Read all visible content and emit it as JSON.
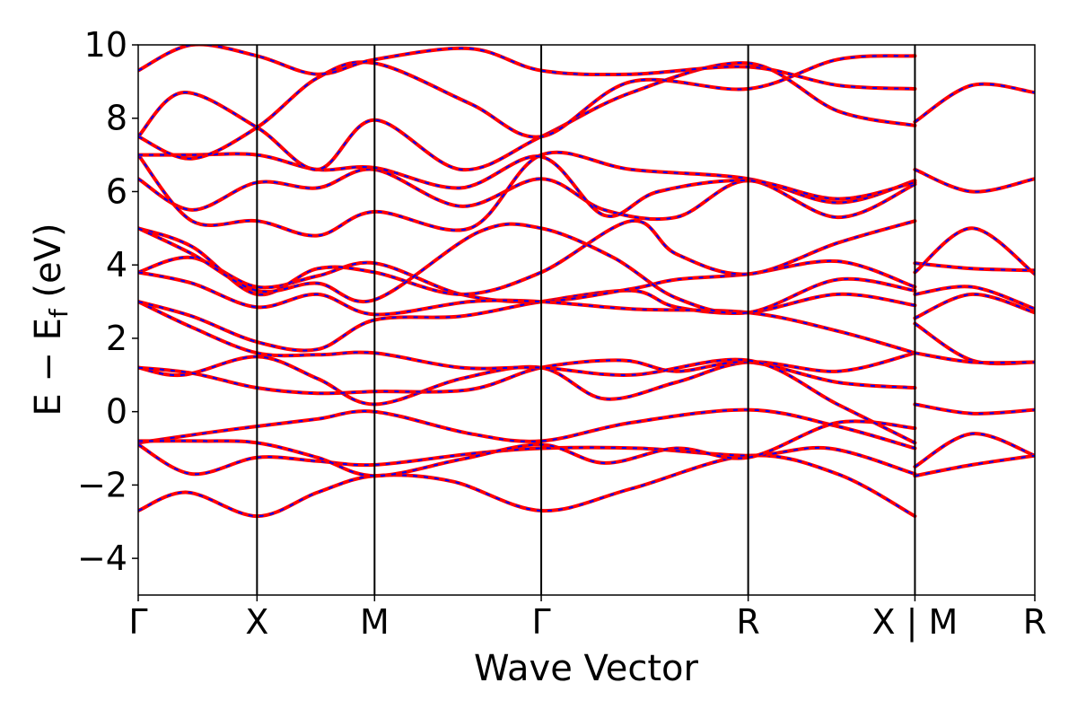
{
  "chart_data": {
    "type": "line",
    "xlabel": "Wave Vector",
    "ylabel": "E − E_f (eV)",
    "ylabel_parts": {
      "main": "E − E",
      "sub": "f",
      "unit": "(eV)"
    },
    "ylim": [
      -5,
      10
    ],
    "yticks": [
      -4,
      -2,
      0,
      2,
      4,
      6,
      8,
      10
    ],
    "ytick_labels": [
      "−4",
      "−2",
      "0",
      "2",
      "4",
      "6",
      "8",
      "10"
    ],
    "xlim": [
      0,
      1
    ],
    "kpoints": [
      {
        "label": "Γ",
        "x": 0.0
      },
      {
        "label": "X",
        "x": 0.1325
      },
      {
        "label": "M",
        "x": 0.2636
      },
      {
        "label": "Γ",
        "x": 0.4495
      },
      {
        "label": "R",
        "x": 0.6803
      },
      {
        "label": "X | M",
        "x": 0.8663
      },
      {
        "label": "R",
        "x": 1.0
      }
    ],
    "grid": false,
    "legend": "none",
    "series_style": [
      {
        "color": "#ff0000",
        "style": "solid"
      },
      {
        "color": "#0000ff",
        "style": "dashed"
      }
    ],
    "bands": [
      [
        [
          0.0,
          -2.7
        ],
        [
          0.0545,
          -2.2
        ],
        [
          0.1325,
          -2.85
        ],
        [
          0.2,
          -2.2
        ],
        [
          0.2636,
          -1.75
        ],
        [
          0.35,
          -1.9
        ],
        [
          0.4495,
          -2.7
        ],
        [
          0.55,
          -2.1
        ],
        [
          0.6803,
          -1.2
        ],
        [
          0.78,
          -1.7
        ],
        [
          0.8663,
          -2.85
        ]
      ],
      [
        [
          0.0,
          -0.9
        ],
        [
          0.06,
          -1.7
        ],
        [
          0.1325,
          -1.25
        ],
        [
          0.2,
          -1.35
        ],
        [
          0.2636,
          -1.45
        ],
        [
          0.37,
          -1.15
        ],
        [
          0.4495,
          -1.0
        ],
        [
          0.56,
          -1.0
        ],
        [
          0.6803,
          -1.2
        ],
        [
          0.77,
          -1.0
        ],
        [
          0.8663,
          -1.7
        ]
      ],
      [
        [
          0.0,
          -0.85
        ],
        [
          0.07,
          -0.6
        ],
        [
          0.1325,
          -0.4
        ],
        [
          0.2,
          -0.2
        ],
        [
          0.2636,
          0.0
        ],
        [
          0.37,
          -0.6
        ],
        [
          0.4495,
          -0.8
        ],
        [
          0.55,
          -0.3
        ],
        [
          0.6803,
          0.05
        ],
        [
          0.78,
          -0.4
        ],
        [
          0.8663,
          -1.0
        ]
      ],
      [
        [
          0.0,
          -0.8
        ],
        [
          0.07,
          -0.8
        ],
        [
          0.1325,
          -0.85
        ],
        [
          0.2,
          -1.25
        ],
        [
          0.2636,
          -1.75
        ],
        [
          0.36,
          -1.3
        ],
        [
          0.4495,
          -0.9
        ],
        [
          0.52,
          -1.4
        ],
        [
          0.6,
          -1.0
        ],
        [
          0.6803,
          -1.25
        ],
        [
          0.78,
          -0.3
        ],
        [
          0.8663,
          -0.45
        ]
      ],
      [
        [
          0.0,
          1.2
        ],
        [
          0.05,
          1.0
        ],
        [
          0.1325,
          1.5
        ],
        [
          0.2,
          0.9
        ],
        [
          0.2636,
          0.2
        ],
        [
          0.36,
          0.9
        ],
        [
          0.4495,
          1.2
        ],
        [
          0.52,
          0.35
        ],
        [
          0.6,
          0.8
        ],
        [
          0.6803,
          1.35
        ],
        [
          0.78,
          1.1
        ],
        [
          0.8663,
          1.6
        ]
      ],
      [
        [
          0.0,
          1.2
        ],
        [
          0.06,
          1.05
        ],
        [
          0.1325,
          0.65
        ],
        [
          0.2,
          0.5
        ],
        [
          0.2636,
          0.55
        ],
        [
          0.37,
          0.6
        ],
        [
          0.4495,
          1.2
        ],
        [
          0.54,
          1.4
        ],
        [
          0.6,
          1.1
        ],
        [
          0.6803,
          1.35
        ],
        [
          0.78,
          0.8
        ],
        [
          0.8663,
          0.65
        ]
      ],
      [
        [
          0.0,
          3.0
        ],
        [
          0.06,
          2.3
        ],
        [
          0.1325,
          1.6
        ],
        [
          0.2,
          1.55
        ],
        [
          0.2636,
          1.6
        ],
        [
          0.36,
          1.2
        ],
        [
          0.4495,
          1.2
        ],
        [
          0.55,
          1.0
        ],
        [
          0.6803,
          1.4
        ],
        [
          0.78,
          0.2
        ],
        [
          0.8663,
          -0.85
        ]
      ],
      [
        [
          0.0,
          3.0
        ],
        [
          0.06,
          2.6
        ],
        [
          0.1325,
          1.9
        ],
        [
          0.2,
          1.7
        ],
        [
          0.2636,
          2.5
        ],
        [
          0.36,
          2.6
        ],
        [
          0.4495,
          3.0
        ],
        [
          0.55,
          3.3
        ],
        [
          0.6,
          2.85
        ],
        [
          0.6803,
          2.7
        ],
        [
          0.78,
          3.2
        ],
        [
          0.8663,
          2.9
        ]
      ],
      [
        [
          0.0,
          3.8
        ],
        [
          0.06,
          4.2
        ],
        [
          0.1325,
          3.4
        ],
        [
          0.2,
          3.7
        ],
        [
          0.2636,
          4.05
        ],
        [
          0.36,
          3.2
        ],
        [
          0.4495,
          3.0
        ],
        [
          0.55,
          3.35
        ],
        [
          0.6,
          3.6
        ],
        [
          0.6803,
          3.75
        ],
        [
          0.78,
          4.1
        ],
        [
          0.8663,
          3.4
        ]
      ],
      [
        [
          0.0,
          3.8
        ],
        [
          0.06,
          3.5
        ],
        [
          0.1325,
          2.85
        ],
        [
          0.2,
          3.2
        ],
        [
          0.2636,
          2.65
        ],
        [
          0.37,
          3.0
        ],
        [
          0.4495,
          3.0
        ],
        [
          0.55,
          2.8
        ],
        [
          0.6803,
          2.7
        ],
        [
          0.78,
          2.2
        ],
        [
          0.8663,
          1.6
        ]
      ],
      [
        [
          0.0,
          5.0
        ],
        [
          0.06,
          4.5
        ],
        [
          0.1325,
          3.2
        ],
        [
          0.2,
          3.9
        ],
        [
          0.2636,
          3.8
        ],
        [
          0.36,
          3.2
        ],
        [
          0.4495,
          3.8
        ],
        [
          0.55,
          5.2
        ],
        [
          0.6,
          4.3
        ],
        [
          0.6803,
          3.75
        ],
        [
          0.78,
          4.6
        ],
        [
          0.8663,
          5.2
        ]
      ],
      [
        [
          0.0,
          5.0
        ],
        [
          0.06,
          4.3
        ],
        [
          0.1325,
          3.3
        ],
        [
          0.2,
          3.5
        ],
        [
          0.2636,
          3.05
        ],
        [
          0.38,
          4.9
        ],
        [
          0.4495,
          5.0
        ],
        [
          0.53,
          4.2
        ],
        [
          0.6,
          3.1
        ],
        [
          0.6803,
          2.7
        ],
        [
          0.78,
          3.6
        ],
        [
          0.8663,
          3.3
        ]
      ],
      [
        [
          0.0,
          6.35
        ],
        [
          0.06,
          5.5
        ],
        [
          0.1325,
          6.25
        ],
        [
          0.2,
          6.1
        ],
        [
          0.2636,
          6.6
        ],
        [
          0.36,
          5.6
        ],
        [
          0.4495,
          6.35
        ],
        [
          0.52,
          5.5
        ],
        [
          0.6,
          5.3
        ],
        [
          0.6803,
          6.3
        ],
        [
          0.78,
          5.3
        ],
        [
          0.8663,
          6.2
        ]
      ],
      [
        [
          0.0,
          7.0
        ],
        [
          0.06,
          5.2
        ],
        [
          0.1325,
          5.2
        ],
        [
          0.2,
          4.8
        ],
        [
          0.2636,
          5.45
        ],
        [
          0.37,
          5.0
        ],
        [
          0.4495,
          7.0
        ],
        [
          0.55,
          6.6
        ],
        [
          0.6803,
          6.35
        ],
        [
          0.78,
          5.7
        ],
        [
          0.8663,
          6.3
        ]
      ],
      [
        [
          0.0,
          7.0
        ],
        [
          0.06,
          7.0
        ],
        [
          0.1325,
          7.0
        ],
        [
          0.2,
          6.6
        ],
        [
          0.2636,
          6.65
        ],
        [
          0.36,
          6.1
        ],
        [
          0.4495,
          6.95
        ],
        [
          0.52,
          5.35
        ],
        [
          0.58,
          6.0
        ],
        [
          0.6803,
          6.3
        ],
        [
          0.78,
          5.8
        ],
        [
          0.8663,
          6.25
        ]
      ],
      [
        [
          0.0,
          7.5
        ],
        [
          0.05,
          8.7
        ],
        [
          0.1325,
          7.75
        ],
        [
          0.2,
          6.6
        ],
        [
          0.2636,
          7.95
        ],
        [
          0.36,
          6.6
        ],
        [
          0.4495,
          7.5
        ],
        [
          0.55,
          8.7
        ],
        [
          0.6803,
          9.5
        ],
        [
          0.78,
          8.2
        ],
        [
          0.8663,
          7.8
        ]
      ],
      [
        [
          0.0,
          7.5
        ],
        [
          0.06,
          6.9
        ],
        [
          0.1325,
          7.75
        ],
        [
          0.2,
          9.1
        ],
        [
          0.2636,
          9.5
        ],
        [
          0.37,
          8.4
        ],
        [
          0.4495,
          7.5
        ],
        [
          0.55,
          9.0
        ],
        [
          0.6803,
          8.8
        ],
        [
          0.78,
          9.6
        ],
        [
          0.8663,
          9.7
        ]
      ],
      [
        [
          0.0,
          9.3
        ],
        [
          0.06,
          10.0
        ],
        [
          0.1325,
          9.7
        ],
        [
          0.2,
          9.2
        ],
        [
          0.2636,
          9.6
        ],
        [
          0.37,
          9.9
        ],
        [
          0.4495,
          9.3
        ],
        [
          0.55,
          9.2
        ],
        [
          0.6803,
          9.4
        ],
        [
          0.78,
          8.9
        ],
        [
          0.8663,
          8.8
        ]
      ],
      [
        [
          0.8663,
          7.9
        ],
        [
          0.93,
          8.9
        ],
        [
          1.0,
          8.7
        ]
      ],
      [
        [
          0.8663,
          6.6
        ],
        [
          0.93,
          6.0
        ],
        [
          1.0,
          6.35
        ]
      ],
      [
        [
          0.8663,
          4.05
        ],
        [
          0.93,
          3.9
        ],
        [
          1.0,
          3.85
        ]
      ],
      [
        [
          0.8663,
          3.8
        ],
        [
          0.93,
          5.0
        ],
        [
          1.0,
          3.75
        ]
      ],
      [
        [
          0.8663,
          3.2
        ],
        [
          0.93,
          3.4
        ],
        [
          1.0,
          2.8
        ]
      ],
      [
        [
          0.8663,
          2.55
        ],
        [
          0.93,
          3.2
        ],
        [
          1.0,
          2.7
        ]
      ],
      [
        [
          0.8663,
          2.4
        ],
        [
          0.93,
          1.4
        ],
        [
          1.0,
          1.35
        ]
      ],
      [
        [
          0.8663,
          1.6
        ],
        [
          0.93,
          1.35
        ],
        [
          1.0,
          1.35
        ]
      ],
      [
        [
          0.8663,
          0.2
        ],
        [
          0.93,
          -0.05
        ],
        [
          1.0,
          0.05
        ]
      ],
      [
        [
          0.8663,
          -1.5
        ],
        [
          0.93,
          -0.6
        ],
        [
          1.0,
          -1.2
        ]
      ],
      [
        [
          0.8663,
          -1.75
        ],
        [
          0.93,
          -1.45
        ],
        [
          1.0,
          -1.2
        ]
      ]
    ]
  }
}
